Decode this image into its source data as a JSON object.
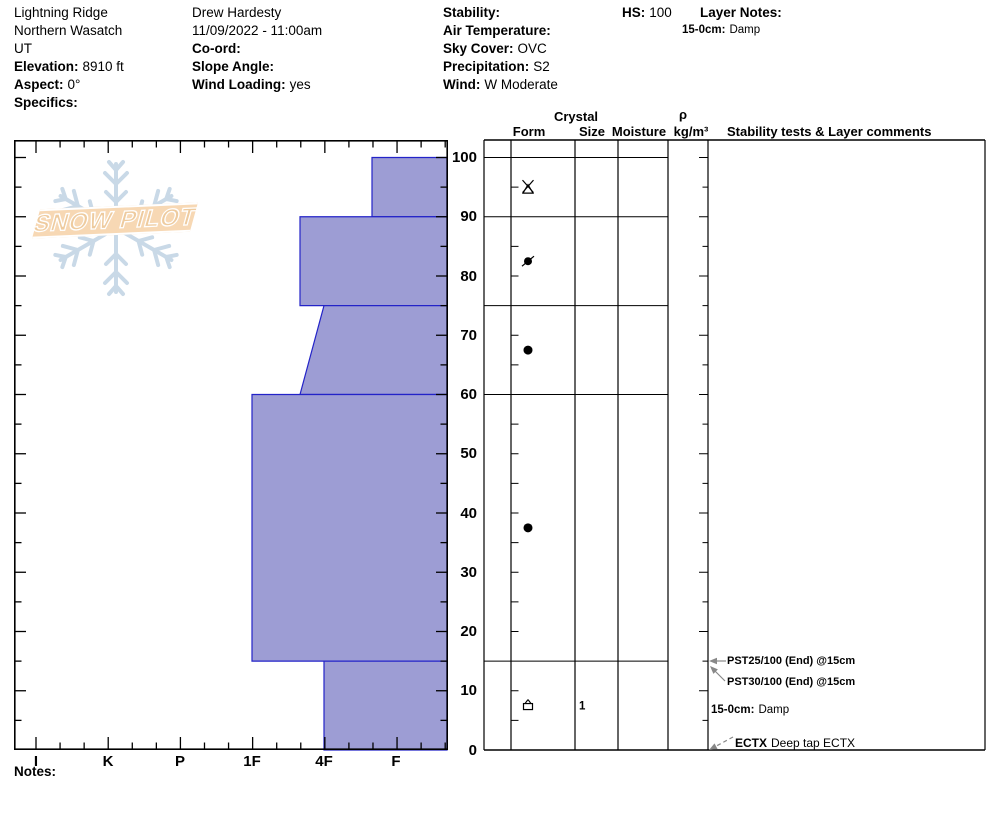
{
  "header": {
    "location": {
      "line1": "Lightning Ridge",
      "line2": "Northern Wasatch",
      "line3": "UT",
      "elevation_label": "Elevation:",
      "elevation_value": "8910 ft",
      "aspect_label": "Aspect:",
      "aspect_value": "0°",
      "specifics_label": "Specifics:"
    },
    "observer": {
      "name": "Drew Hardesty",
      "datetime": "11/09/2022 - 11:00am",
      "coord_label": "Co-ord:",
      "slope_label": "Slope Angle:",
      "wind_loading_label": "Wind Loading:",
      "wind_loading_value": "yes"
    },
    "conditions": {
      "stability_label": "Stability:",
      "air_temp_label": "Air Temperature:",
      "sky_label": "Sky Cover:",
      "sky_value": "OVC",
      "precip_label": "Precipitation:",
      "precip_value": "S2",
      "wind_label": "Wind:",
      "wind_value": "W Moderate"
    },
    "hs_label": "HS:",
    "hs_value": "100",
    "layer_notes_label": "Layer Notes:",
    "layer_note_label": "15-0cm:",
    "layer_note_value": "Damp"
  },
  "watermark": {
    "text": "SNOW PILOT"
  },
  "table_headers": {
    "crystal": "Crystal",
    "form": "Form",
    "size": "Size",
    "moisture": "Moisture",
    "rho": "ρ",
    "rho_unit": "kg/m³",
    "comments": "Stability tests & Layer comments"
  },
  "stability_tests": {
    "pst1": "PST25/100 (End) @15cm",
    "pst2": "PST30/100 (End) @15cm",
    "layer_note_label": "15-0cm:",
    "layer_note_value": "Damp",
    "ect_label": "ECTX",
    "ect_value": "Deep tap ECTX"
  },
  "notes_label": "Notes:",
  "chart_data": {
    "type": "snow-profile",
    "title": "Snow hardness profile with grain form table",
    "depth_axis": {
      "unit": "cm",
      "min": 0,
      "max": 100,
      "tick_interval": 10,
      "labels": [
        0,
        10,
        20,
        30,
        40,
        50,
        60,
        70,
        80,
        90,
        100
      ],
      "label_side": "right"
    },
    "hardness_axis": {
      "categories": [
        "I",
        "K",
        "P",
        "1F",
        "4F",
        "F"
      ],
      "note": "hand hardness, hardest (I) at left, bars anchored at soft right edge"
    },
    "layers": [
      {
        "top_cm": 100,
        "bottom_cm": 90,
        "hardness_top": "F+",
        "hardness_bottom": "F+",
        "grain_form": "PP (stellar)",
        "symbol": "stellar",
        "grain_size_mm": "",
        "moisture": ""
      },
      {
        "top_cm": 90,
        "bottom_cm": 75,
        "hardness_top": "4F+",
        "hardness_bottom": "4F+",
        "grain_form": "DF",
        "symbol": "df",
        "grain_size_mm": "",
        "moisture": ""
      },
      {
        "top_cm": 75,
        "bottom_cm": 60,
        "hardness_top": "4F",
        "hardness_bottom": "4F+",
        "grain_form": "RG",
        "symbol": "rg",
        "grain_size_mm": "",
        "moisture": ""
      },
      {
        "top_cm": 60,
        "bottom_cm": 15,
        "hardness_top": "1F",
        "hardness_bottom": "1F",
        "grain_form": "RG",
        "symbol": "rg",
        "grain_size_mm": "",
        "moisture": ""
      },
      {
        "top_cm": 15,
        "bottom_cm": 0,
        "hardness_top": "4F",
        "hardness_bottom": "4F",
        "grain_form": "FC/DH",
        "symbol": "fcdh",
        "grain_size_mm": "1",
        "moisture": "Damp"
      }
    ],
    "colors": {
      "bar_fill": "#9d9dd4",
      "bar_stroke": "#2323c8",
      "grid": "#000000",
      "arrow": "#888888",
      "watermark_flake": "#c9d9e7",
      "watermark_banner": "#f7d8b4"
    }
  }
}
